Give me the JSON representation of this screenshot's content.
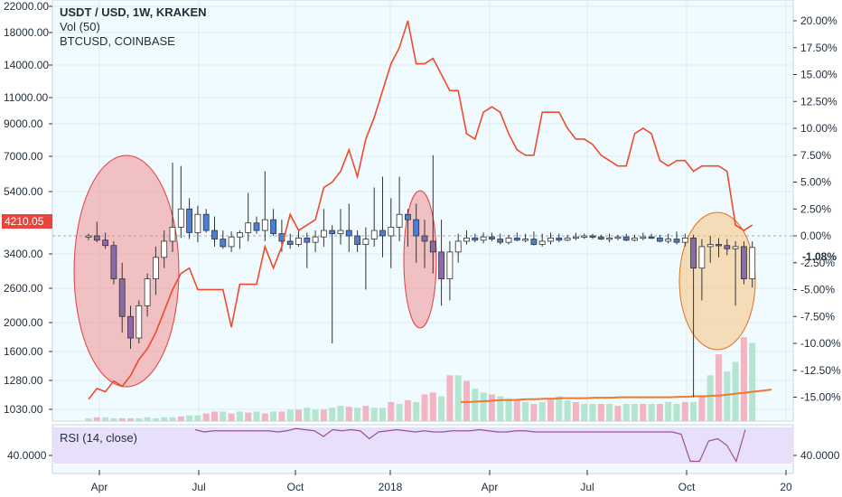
{
  "legend": {
    "title": "USDT / USD, 1W, KRAKEN",
    "volume": "Vol (50)",
    "compare": "BTCUSD, COINBASE"
  },
  "rsi_label": "RSI (14, close)",
  "colors": {
    "up": "#ffffff",
    "down_blue": "#4a7fd8",
    "down_purple": "#8b6aa8",
    "wick": "#333333",
    "btc_line": "#f04a2a",
    "vol_up": "#a8e0c8",
    "vol_down": "#f5a8b8",
    "vol_ma": "#f07830",
    "rsi_line": "#9b4f9b",
    "rsi_band": "#e8e0fa",
    "plot_bg": "#f0fbff",
    "grid": "#dcecf2",
    "last_price_bg": "#e8453c",
    "ellipse_red": "#f09090",
    "ellipse_orange": "#f8c888"
  },
  "chart_data": [
    {
      "type": "candlestick",
      "name": "USDT / USD",
      "description_of_y_axis": "left log axis (price labels)",
      "left_axis_labels": [
        "22000.00",
        "18000.00",
        "14000.00",
        "11000.00",
        "9000.00",
        "7000.00",
        "5400.00",
        "4210.05",
        "3400.00",
        "2600.00",
        "2000.00",
        "1600.00",
        "1280.00",
        "1030.00"
      ],
      "last_price_label": "4210.05",
      "x_tick_labels": [
        "Apr",
        "Jul",
        "Oct",
        "2018",
        "Apr",
        "Jul",
        "Oct",
        "20"
      ],
      "ohlc_pct": [
        [
          0.0,
          0.2,
          -0.4,
          0.0
        ],
        [
          0.0,
          1.3,
          -0.6,
          -0.4
        ],
        [
          -0.4,
          0.3,
          -1.2,
          -0.9
        ],
        [
          -0.9,
          -0.5,
          -4.5,
          -4.0
        ],
        [
          -4.0,
          -2.5,
          -9.0,
          -7.5
        ],
        [
          -7.5,
          -6.5,
          -10.5,
          -9.5
        ],
        [
          -9.5,
          -6.0,
          -10.0,
          -6.5
        ],
        [
          -6.5,
          -3.5,
          -7.5,
          -4.0
        ],
        [
          -4.0,
          -1.0,
          -5.5,
          -2.0
        ],
        [
          -2.0,
          0.5,
          -3.0,
          -0.5
        ],
        [
          -0.5,
          6.8,
          -1.5,
          0.8
        ],
        [
          0.8,
          6.5,
          -0.2,
          2.5
        ],
        [
          2.5,
          3.5,
          -0.3,
          0.3
        ],
        [
          0.3,
          2.8,
          -0.6,
          2.0
        ],
        [
          2.0,
          2.5,
          0.3,
          0.5
        ],
        [
          0.5,
          1.8,
          -1.0,
          -0.3
        ],
        [
          -0.3,
          0.5,
          -1.2,
          -1.0
        ],
        [
          -1.0,
          0.4,
          -1.5,
          -0.1
        ],
        [
          -0.1,
          0.5,
          -1.2,
          0.3
        ],
        [
          0.3,
          4.0,
          -0.5,
          1.2
        ],
        [
          1.2,
          1.8,
          0.2,
          0.5
        ],
        [
          0.5,
          6.0,
          -0.5,
          1.5
        ],
        [
          1.5,
          2.5,
          0.0,
          0.2
        ],
        [
          0.2,
          1.5,
          -1.5,
          -0.5
        ],
        [
          -0.5,
          0.2,
          -1.2,
          -0.8
        ],
        [
          -0.8,
          0.5,
          -1.0,
          -0.2
        ],
        [
          -0.2,
          0.3,
          -3.0,
          -0.6
        ],
        [
          -0.6,
          0.5,
          -1.5,
          -0.1
        ],
        [
          -0.1,
          2.5,
          -1.0,
          0.5
        ],
        [
          0.5,
          1.0,
          -10.0,
          0.2
        ],
        [
          0.2,
          2.5,
          -0.8,
          0.5
        ],
        [
          0.5,
          3.0,
          -1.5,
          0.0
        ],
        [
          0.0,
          0.5,
          -1.5,
          -0.8
        ],
        [
          -0.8,
          0.8,
          -5.0,
          -0.3
        ],
        [
          -0.3,
          4.5,
          -1.0,
          0.5
        ],
        [
          0.5,
          5.5,
          -2.0,
          0.0
        ],
        [
          0.0,
          3.5,
          -3.0,
          0.8
        ],
        [
          0.8,
          5.5,
          -0.5,
          2.0
        ],
        [
          2.0,
          2.5,
          -1.0,
          1.5
        ],
        [
          1.5,
          3.0,
          -2.5,
          0.0
        ],
        [
          0.0,
          1.5,
          -3.0,
          -0.5
        ],
        [
          -0.5,
          7.5,
          -3.5,
          -1.5
        ],
        [
          -1.5,
          1.5,
          -6.5,
          -4.0
        ],
        [
          -4.0,
          -0.5,
          -6.0,
          -1.5
        ],
        [
          -1.5,
          0.2,
          -2.5,
          -0.5
        ],
        [
          -0.5,
          0.5,
          -0.8,
          -0.2
        ],
        [
          -0.2,
          0.2,
          -0.6,
          -0.4
        ],
        [
          -0.4,
          0.3,
          -0.7,
          -0.1
        ],
        [
          -0.1,
          0.3,
          -0.5,
          -0.3
        ],
        [
          -0.3,
          0.2,
          -0.8,
          -0.6
        ],
        [
          -0.6,
          0.1,
          -0.8,
          -0.2
        ],
        [
          -0.2,
          0.3,
          -0.5,
          -0.4
        ],
        [
          -0.4,
          0.2,
          -0.6,
          -0.3
        ],
        [
          -0.3,
          0.4,
          -0.9,
          -0.8
        ],
        [
          -0.8,
          0.2,
          -1.0,
          -0.5
        ],
        [
          -0.5,
          0.3,
          -0.8,
          -0.2
        ],
        [
          -0.2,
          0.2,
          -0.6,
          -0.4
        ],
        [
          -0.4,
          0.1,
          -0.5,
          -0.2
        ],
        [
          -0.2,
          0.3,
          -0.4,
          -0.1
        ],
        [
          -0.1,
          0.2,
          -0.3,
          0.0
        ],
        [
          0.0,
          0.2,
          -0.3,
          -0.1
        ],
        [
          -0.1,
          0.1,
          -0.4,
          -0.3
        ],
        [
          -0.3,
          0.2,
          -0.6,
          -0.2
        ],
        [
          -0.2,
          0.1,
          -0.4,
          -0.1
        ],
        [
          -0.1,
          0.2,
          -0.5,
          -0.4
        ],
        [
          -0.4,
          0.1,
          -0.5,
          -0.2
        ],
        [
          -0.2,
          0.3,
          -0.4,
          -0.1
        ],
        [
          -0.1,
          0.2,
          -0.3,
          -0.2
        ],
        [
          -0.2,
          0.1,
          -0.6,
          -0.5
        ],
        [
          -0.5,
          0.2,
          -0.7,
          -0.3
        ],
        [
          -0.3,
          0.4,
          -0.8,
          -0.6
        ],
        [
          -0.6,
          0.2,
          -1.0,
          -0.2
        ],
        [
          -0.2,
          0.1,
          -15.0,
          -3.0
        ],
        [
          -3.0,
          -0.3,
          -6.0,
          -1.0
        ],
        [
          -1.0,
          0.0,
          -2.5,
          -0.8
        ],
        [
          -0.8,
          -0.2,
          -2.0,
          -0.9
        ],
        [
          -0.9,
          -0.3,
          -1.8,
          -1.2
        ],
        [
          -1.2,
          -0.5,
          -6.5,
          -1.0
        ],
        [
          -1.0,
          -0.5,
          -4.5,
          -4.0
        ],
        [
          -4.0,
          -0.5,
          -4.8,
          -1.08
        ]
      ],
      "down_candle_color_index": [
        "purple",
        "purple",
        "purple",
        "purple",
        "purple",
        "purple",
        "blue",
        "blue",
        "blue",
        "blue",
        "blue",
        "blue",
        "blue",
        "blue",
        "blue",
        "blue",
        "blue",
        "blue",
        "blue",
        "blue",
        "blue",
        "blue",
        "blue",
        "blue",
        "blue",
        "blue",
        "blue",
        "blue",
        "blue",
        "blue",
        "blue",
        "blue",
        "blue",
        "blue",
        "blue",
        "blue",
        "blue",
        "blue",
        "blue",
        "blue",
        "purple",
        "purple",
        "purple",
        "purple",
        "blue",
        "blue",
        "blue",
        "blue",
        "blue",
        "blue",
        "blue",
        "blue",
        "blue",
        "blue",
        "blue",
        "blue",
        "blue",
        "blue",
        "blue",
        "blue",
        "blue",
        "blue",
        "blue",
        "blue",
        "blue",
        "blue",
        "blue",
        "blue",
        "blue",
        "blue",
        "blue",
        "blue",
        "purple",
        "purple",
        "purple",
        "purple",
        "purple",
        "purple",
        "purple",
        "purple"
      ]
    },
    {
      "type": "line",
      "name": "BTCUSD, COINBASE",
      "right_axis_labels": [
        "20.00%",
        "17.50%",
        "15.00%",
        "12.50%",
        "10.00%",
        "7.50%",
        "5.00%",
        "2.50%",
        "0.00%",
        "-2.50%",
        "-5.00%",
        "-7.50%",
        "-10.00%",
        "-12.50%",
        "-15.00%"
      ],
      "current_pct_label": "-1.08%",
      "values_pct": [
        -15.2,
        -14.2,
        -14.5,
        -13.5,
        -14.0,
        -13.0,
        -11.5,
        -10.5,
        -9.0,
        -7.0,
        -5.0,
        -3.5,
        -3.0,
        -5.0,
        -5.0,
        -5.0,
        -5.0,
        -8.5,
        -4.5,
        -4.5,
        -4.5,
        -1.0,
        -3.0,
        -1.0,
        2.0,
        0.5,
        1.0,
        1.5,
        4.5,
        5.0,
        6.0,
        8.0,
        5.5,
        9.0,
        11.0,
        13.5,
        16.0,
        17.5,
        20.0,
        16.0,
        16.0,
        16.5,
        15.0,
        13.5,
        13.5,
        9.5,
        9.0,
        11.5,
        12.0,
        11.5,
        9.5,
        8.0,
        7.5,
        7.5,
        11.5,
        11.5,
        11.5,
        10.0,
        9.0,
        9.0,
        8.5,
        7.5,
        7.0,
        6.5,
        6.5,
        9.5,
        10.0,
        9.5,
        7.0,
        6.5,
        7.0,
        7.0,
        6.0,
        6.5,
        6.5,
        6.5,
        6.0,
        1.0,
        0.5,
        1.0
      ]
    },
    {
      "type": "bar",
      "name": "Vol (50)",
      "values": [
        3,
        4,
        4,
        3,
        3,
        3,
        3,
        4,
        3,
        4,
        4,
        5,
        6,
        6,
        8,
        10,
        10,
        8,
        10,
        9,
        10,
        8,
        10,
        10,
        12,
        12,
        14,
        12,
        12,
        14,
        16,
        15,
        14,
        16,
        14,
        14,
        20,
        18,
        22,
        20,
        28,
        30,
        26,
        48,
        48,
        42,
        34,
        30,
        28,
        26,
        24,
        22,
        20,
        18,
        20,
        24,
        26,
        22,
        20,
        18,
        18,
        18,
        18,
        16,
        18,
        18,
        18,
        18,
        18,
        20,
        18,
        20,
        20,
        26,
        48,
        70,
        52,
        62,
        88,
        82
      ],
      "up": [
        1,
        0,
        1,
        1,
        0,
        0,
        1,
        1,
        1,
        1,
        1,
        0,
        1,
        1,
        0,
        0,
        1,
        0,
        1,
        0,
        1,
        0,
        1,
        0,
        1,
        0,
        1,
        1,
        0,
        1,
        1,
        0,
        1,
        0,
        1,
        1,
        0,
        1,
        0,
        1,
        0,
        0,
        1,
        0,
        1,
        0,
        1,
        1,
        0,
        1,
        1,
        0,
        1,
        0,
        1,
        0,
        1,
        1,
        0,
        1,
        1,
        0,
        1,
        0,
        1,
        1,
        0,
        1,
        0,
        1,
        1,
        0,
        1,
        0,
        1,
        0,
        1,
        1,
        0,
        1
      ],
      "ma_values": [
        20,
        20,
        20.5,
        21,
        21.5,
        22,
        22,
        22.5,
        23,
        23,
        23.5,
        23.5,
        24,
        24,
        24,
        24,
        24.5,
        24.5,
        24.5,
        25,
        25,
        25,
        25,
        25,
        25,
        25,
        25.5,
        25.5,
        26,
        26,
        26.5,
        27,
        28,
        29,
        30,
        31,
        32,
        33
      ]
    },
    {
      "type": "line",
      "name": "RSI (14, close)",
      "axis_label": "40.0000",
      "values": [
        58,
        56,
        57,
        57,
        57,
        57,
        57,
        57,
        57,
        56,
        57,
        59,
        58,
        57,
        52,
        58,
        57,
        58,
        57,
        50,
        56,
        57,
        58,
        57,
        56,
        57,
        56,
        56,
        57,
        57,
        57,
        58,
        57,
        56,
        56,
        57,
        57,
        56,
        56,
        56,
        56,
        56,
        56,
        56,
        56,
        56,
        56,
        56,
        56,
        56,
        56,
        56,
        56,
        54,
        30,
        30,
        48,
        50,
        44,
        30,
        58
      ]
    }
  ]
}
